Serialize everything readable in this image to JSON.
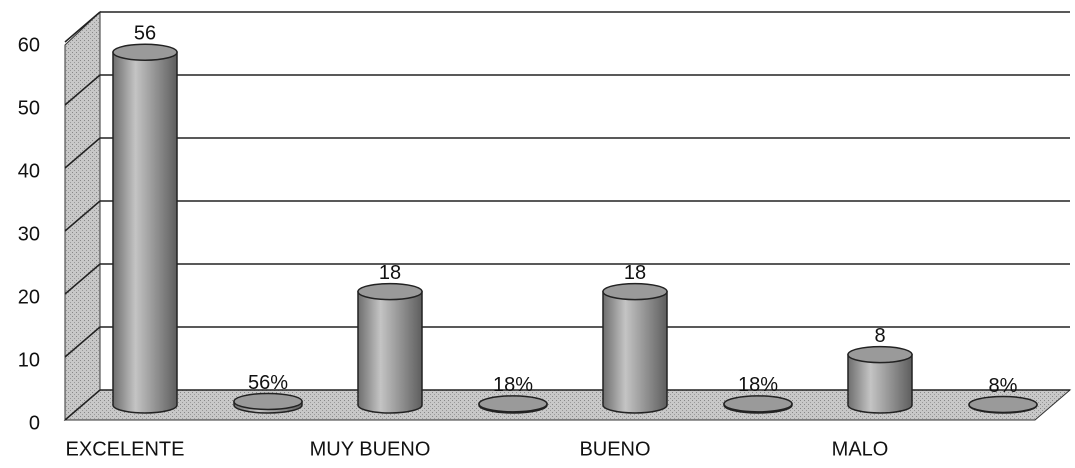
{
  "chart_data": {
    "type": "bar",
    "categories": [
      "EXCELENTE",
      "MUY BUENO",
      "BUENO",
      "MALO"
    ],
    "series": [
      {
        "color": "#9a9a9a",
        "values": [
          56,
          18,
          18,
          8
        ]
      },
      {
        "color": "#9a9a9a",
        "values": [
          0.56,
          0.18,
          0.18,
          0.08
        ],
        "value_labels": [
          "56%",
          "18%",
          "18%",
          "8%"
        ]
      }
    ],
    "ylim": [
      0,
      60
    ],
    "yticks": [
      0,
      10,
      20,
      30,
      40,
      50,
      60
    ],
    "grid": true
  }
}
